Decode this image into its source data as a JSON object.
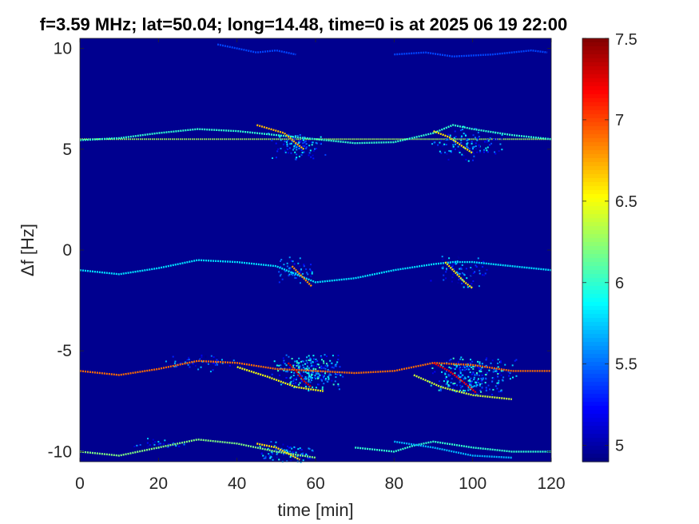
{
  "chart_data": {
    "type": "heatmap",
    "title": "f=3.59 MHz;  lat=50.04; long=14.48, time=0 is at 2025 06 19 22:00",
    "xlabel": "time [min]",
    "ylabel": "Δf [Hz]",
    "xlim": [
      0,
      120
    ],
    "ylim": [
      -10.5,
      10.5
    ],
    "xticks": [
      0,
      20,
      40,
      60,
      80,
      100,
      120
    ],
    "xtick_labels": [
      "0",
      "20",
      "40",
      "60",
      "80",
      "100",
      "120"
    ],
    "yticks": [
      10,
      5,
      0,
      -5,
      -10
    ],
    "ytick_labels": [
      "10",
      "5",
      "0",
      "-5",
      "-10"
    ],
    "colorbar": {
      "range": [
        4.9,
        7.5
      ],
      "ticks": [
        7.5,
        7,
        6.5,
        6,
        5.5,
        5
      ],
      "tick_labels": [
        "7.5",
        "7",
        "6.5",
        "6",
        "5.5",
        "5"
      ],
      "colormap": "jet"
    },
    "background_color": "#00008f",
    "constant_lines": [
      {
        "y": 5.5,
        "level": 6.3
      }
    ],
    "traces": [
      {
        "level": 6.0,
        "points": [
          [
            0,
            5.45
          ],
          [
            10,
            5.55
          ],
          [
            20,
            5.8
          ],
          [
            30,
            6.0
          ],
          [
            40,
            5.9
          ],
          [
            50,
            5.7
          ],
          [
            60,
            5.5
          ],
          [
            70,
            5.3
          ],
          [
            80,
            5.35
          ],
          [
            90,
            5.8
          ],
          [
            95,
            6.2
          ],
          [
            100,
            6.0
          ],
          [
            110,
            5.7
          ],
          [
            120,
            5.5
          ]
        ]
      },
      {
        "level": 6.7,
        "points": [
          [
            45,
            6.2
          ],
          [
            52,
            5.8
          ],
          [
            55,
            5.3
          ],
          [
            57,
            5.0
          ]
        ]
      },
      {
        "level": 6.6,
        "points": [
          [
            90,
            5.9
          ],
          [
            94,
            5.6
          ],
          [
            97,
            5.2
          ],
          [
            100,
            4.8
          ]
        ]
      },
      {
        "level": 5.8,
        "points": [
          [
            0,
            -1.0
          ],
          [
            10,
            -1.2
          ],
          [
            20,
            -0.9
          ],
          [
            30,
            -0.5
          ],
          [
            40,
            -0.6
          ],
          [
            50,
            -0.8
          ],
          [
            55,
            -1.2
          ],
          [
            60,
            -1.6
          ],
          [
            70,
            -1.4
          ],
          [
            80,
            -1.0
          ],
          [
            90,
            -0.7
          ],
          [
            95,
            -0.6
          ],
          [
            100,
            -0.6
          ],
          [
            110,
            -0.8
          ],
          [
            120,
            -1.0
          ]
        ]
      },
      {
        "level": 6.8,
        "points": [
          [
            54,
            -0.8
          ],
          [
            56,
            -1.2
          ],
          [
            58,
            -1.6
          ],
          [
            59,
            -1.8
          ]
        ]
      },
      {
        "level": 6.6,
        "points": [
          [
            93,
            -0.6
          ],
          [
            96,
            -1.2
          ],
          [
            98,
            -1.6
          ],
          [
            100,
            -1.9
          ]
        ]
      },
      {
        "level": 6.9,
        "points": [
          [
            0,
            -6.0
          ],
          [
            10,
            -6.2
          ],
          [
            20,
            -5.9
          ],
          [
            30,
            -5.5
          ],
          [
            40,
            -5.6
          ],
          [
            50,
            -5.9
          ],
          [
            60,
            -6.0
          ],
          [
            70,
            -6.1
          ],
          [
            80,
            -6.0
          ],
          [
            90,
            -5.6
          ],
          [
            100,
            -5.7
          ],
          [
            110,
            -6.0
          ],
          [
            120,
            -6.0
          ]
        ]
      },
      {
        "level": 7.3,
        "points": [
          [
            53,
            -5.6
          ],
          [
            55,
            -6.0
          ],
          [
            57,
            -6.5
          ],
          [
            59,
            -6.8
          ]
        ]
      },
      {
        "level": 7.2,
        "points": [
          [
            90,
            -5.6
          ],
          [
            94,
            -6.0
          ],
          [
            98,
            -6.6
          ],
          [
            101,
            -7.1
          ]
        ]
      },
      {
        "level": 6.5,
        "points": [
          [
            40,
            -5.8
          ],
          [
            48,
            -6.3
          ],
          [
            55,
            -6.8
          ],
          [
            62,
            -7.0
          ]
        ]
      },
      {
        "level": 6.4,
        "points": [
          [
            85,
            -6.2
          ],
          [
            92,
            -6.8
          ],
          [
            100,
            -7.2
          ],
          [
            110,
            -7.4
          ]
        ]
      },
      {
        "level": 6.2,
        "points": [
          [
            0,
            -10.0
          ],
          [
            10,
            -10.2
          ],
          [
            20,
            -9.8
          ],
          [
            30,
            -9.4
          ],
          [
            40,
            -9.6
          ],
          [
            50,
            -10.0
          ],
          [
            60,
            -10.3
          ]
        ]
      },
      {
        "level": 6.6,
        "points": [
          [
            45,
            -9.6
          ],
          [
            50,
            -9.8
          ],
          [
            53,
            -10.1
          ],
          [
            56,
            -10.4
          ]
        ]
      },
      {
        "level": 6.0,
        "points": [
          [
            70,
            -9.8
          ],
          [
            80,
            -10.0
          ],
          [
            85,
            -9.7
          ],
          [
            90,
            -9.5
          ],
          [
            100,
            -9.8
          ],
          [
            110,
            -10.0
          ],
          [
            120,
            -10.0
          ]
        ]
      },
      {
        "level": 5.7,
        "points": [
          [
            80,
            -9.5
          ],
          [
            90,
            -9.8
          ],
          [
            100,
            -10.2
          ],
          [
            110,
            -10.3
          ]
        ]
      },
      {
        "level": 5.4,
        "points": [
          [
            35,
            10.2
          ],
          [
            40,
            10.0
          ],
          [
            45,
            9.8
          ],
          [
            50,
            9.9
          ],
          [
            55,
            9.7
          ]
        ]
      },
      {
        "level": 5.4,
        "points": [
          [
            80,
            9.7
          ],
          [
            88,
            9.8
          ],
          [
            95,
            9.6
          ],
          [
            105,
            9.7
          ],
          [
            115,
            9.9
          ],
          [
            119,
            9.8
          ]
        ]
      }
    ],
    "clouds": [
      {
        "x": 55,
        "y": 5.2,
        "dx": 8,
        "dy": 0.8,
        "level": 5.5,
        "n": 110
      },
      {
        "x": 98,
        "y": 5.3,
        "dx": 10,
        "dy": 0.9,
        "level": 5.5,
        "n": 120
      },
      {
        "x": 55,
        "y": -1.0,
        "dx": 5,
        "dy": 0.7,
        "level": 5.4,
        "n": 60
      },
      {
        "x": 97,
        "y": -1.0,
        "dx": 8,
        "dy": 0.9,
        "level": 5.4,
        "n": 80
      },
      {
        "x": 58,
        "y": -6.0,
        "dx": 10,
        "dy": 1.0,
        "level": 5.6,
        "n": 260
      },
      {
        "x": 100,
        "y": -6.2,
        "dx": 12,
        "dy": 1.0,
        "level": 5.6,
        "n": 260
      },
      {
        "x": 30,
        "y": -5.5,
        "dx": 10,
        "dy": 0.5,
        "level": 5.3,
        "n": 60
      },
      {
        "x": 52,
        "y": -10.0,
        "dx": 8,
        "dy": 0.6,
        "level": 5.5,
        "n": 90
      },
      {
        "x": 20,
        "y": -9.6,
        "dx": 8,
        "dy": 0.4,
        "level": 5.3,
        "n": 40
      }
    ]
  }
}
